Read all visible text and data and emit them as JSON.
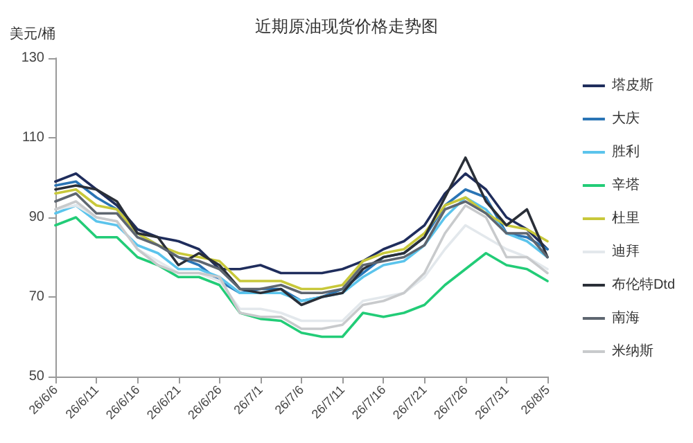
{
  "chart_data": {
    "type": "line",
    "title": "近期原油现货价格走势图",
    "ylabel": "美元/桶",
    "categories": [
      "26/6/6",
      null,
      "26/6/11",
      null,
      "26/6/16",
      null,
      "26/6/21",
      null,
      "26/6/26",
      null,
      "26/7/1",
      null,
      "26/7/6",
      null,
      "26/7/11",
      null,
      "26/7/16",
      null,
      "26/7/21",
      null,
      "26/7/26",
      null,
      "26/7/31",
      null,
      "26/8/5"
    ],
    "series": [
      {
        "name": "塔皮斯",
        "color": "#1f2d5c",
        "values": [
          99,
          101,
          97,
          93,
          87,
          85,
          84,
          82,
          77,
          77,
          78,
          76,
          76,
          76,
          77,
          79,
          82,
          84,
          88,
          96,
          101,
          97,
          90,
          87,
          82
        ]
      },
      {
        "name": "大庆",
        "color": "#2a74b5",
        "values": [
          98,
          99,
          95,
          92,
          86,
          83,
          80,
          78,
          74,
          71,
          72,
          72,
          69,
          70,
          72,
          76,
          80,
          81,
          85,
          93,
          97,
          95,
          86,
          85,
          82
        ]
      },
      {
        "name": "胜利",
        "color": "#5bc4ec",
        "values": [
          91,
          93,
          89,
          88,
          83,
          81,
          77,
          77,
          75,
          71,
          71,
          71,
          69,
          70,
          71,
          75,
          78,
          79,
          83,
          90,
          95,
          92,
          86,
          84,
          80
        ]
      },
      {
        "name": "辛塔",
        "color": "#22cc77",
        "values": [
          88,
          90,
          85,
          85,
          80,
          78,
          75,
          75,
          73,
          66,
          64.5,
          64,
          61,
          60,
          60,
          66,
          65,
          66,
          68,
          73,
          77,
          81,
          78,
          77,
          74
        ]
      },
      {
        "name": "杜里",
        "color": "#c8c83a",
        "values": [
          96,
          97,
          93,
          92,
          86,
          83,
          81,
          80,
          79,
          74,
          74,
          74,
          72,
          72,
          73,
          79,
          81,
          82,
          86,
          93,
          95,
          91,
          88,
          87,
          84
        ]
      },
      {
        "name": "迪拜",
        "color": "#e3e8ec",
        "values": [
          92,
          93,
          90,
          89,
          82,
          79,
          76,
          76,
          74,
          67,
          67,
          66,
          64,
          64,
          64,
          69,
          70,
          71,
          75,
          82,
          88,
          85,
          82,
          80,
          77
        ]
      },
      {
        "name": "布伦特Dtd",
        "color": "#2a2f38",
        "values": [
          97,
          98,
          97,
          94,
          86,
          85,
          78,
          81,
          78,
          72,
          71,
          72,
          68,
          70,
          71,
          77,
          80,
          81,
          85,
          95,
          105,
          94,
          88,
          92,
          80
        ]
      },
      {
        "name": "南海",
        "color": "#5e6670",
        "values": [
          94,
          96,
          91,
          91,
          85,
          83,
          80,
          79,
          77,
          72,
          72,
          73,
          71,
          71,
          72,
          78,
          79,
          80,
          83,
          92,
          94,
          91,
          86,
          86,
          80
        ]
      },
      {
        "name": "米纳斯",
        "color": "#c8cacc",
        "values": [
          92,
          94,
          90,
          89,
          82,
          78,
          76,
          76,
          75,
          66,
          65,
          65,
          62,
          62,
          63,
          68,
          69,
          71,
          76,
          86,
          93,
          90,
          80,
          80,
          76
        ]
      }
    ],
    "ylim": [
      50,
      130
    ],
    "yticks": [
      50,
      70,
      90,
      110,
      130
    ],
    "grid": false,
    "legend": "right",
    "marker": "none",
    "line_style": "solid"
  }
}
